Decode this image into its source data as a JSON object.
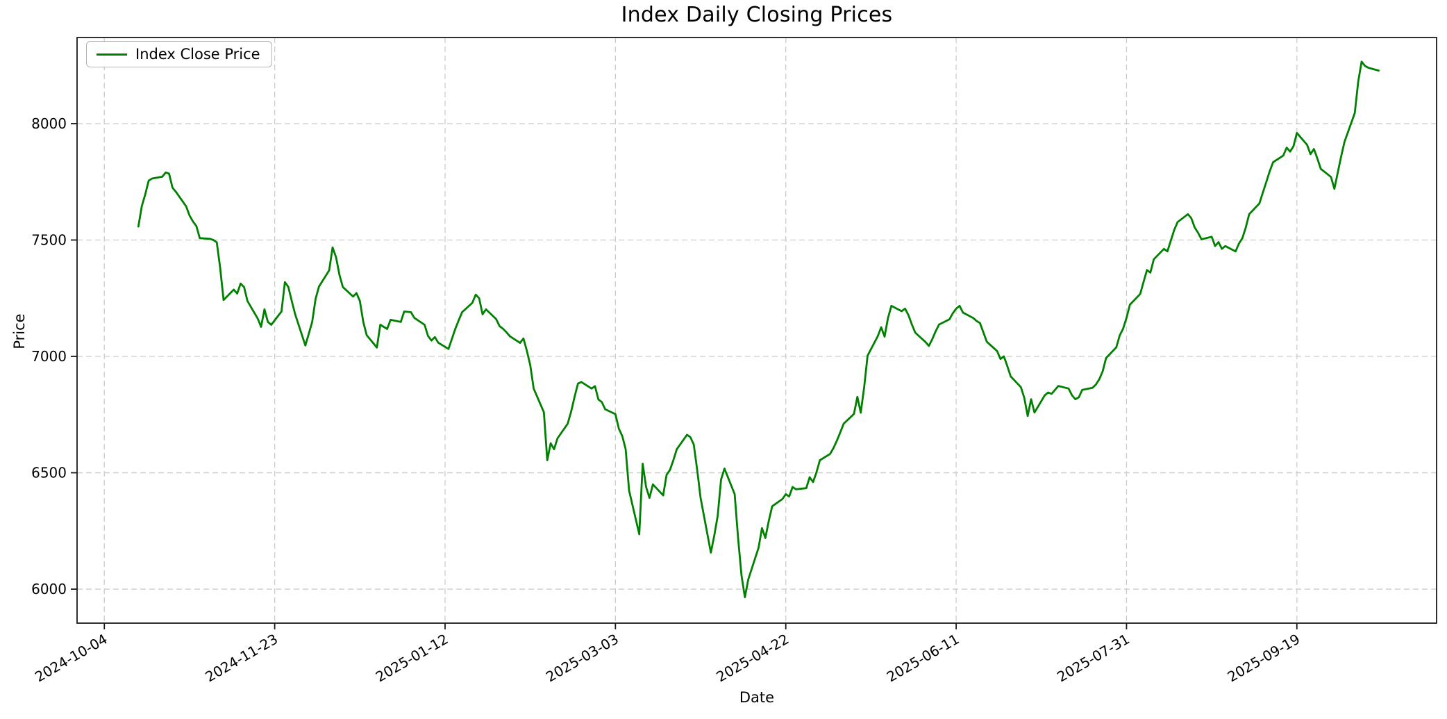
{
  "figure": {
    "title": "Index Daily Closing Prices",
    "xlabel": "Date",
    "ylabel": "Price"
  },
  "legend": {
    "label": "Index Close Price"
  },
  "chart_data": {
    "type": "line",
    "title": "Index Daily Closing Prices",
    "xlabel": "Date",
    "ylabel": "Price",
    "grid": true,
    "grid_style": "dashed",
    "legend_position": "upper-left",
    "legend_entries": [
      "Index Close Price"
    ],
    "line_color": "#008000",
    "grid_color": "#cccccc",
    "spine_color": "#1a1a1a",
    "x_range": [
      "2024-09-26",
      "2025-10-30"
    ],
    "ylim": [
      5854,
      8370
    ],
    "x_ticks": [
      "2024-10-04",
      "2024-11-23",
      "2025-01-12",
      "2025-03-03",
      "2025-04-22",
      "2025-06-11",
      "2025-07-31",
      "2025-09-19"
    ],
    "y_ticks": [
      6000,
      6500,
      7000,
      7500,
      8000
    ],
    "series": [
      {
        "name": "Index Close Price",
        "color": "#008000",
        "points": [
          [
            "2024-10-14",
            7558
          ],
          [
            "2024-10-15",
            7645
          ],
          [
            "2024-10-16",
            7695
          ],
          [
            "2024-10-17",
            7755
          ],
          [
            "2024-10-18",
            7764
          ],
          [
            "2024-10-21",
            7772
          ],
          [
            "2024-10-22",
            7790
          ],
          [
            "2024-10-23",
            7785
          ],
          [
            "2024-10-24",
            7725
          ],
          [
            "2024-10-25",
            7707
          ],
          [
            "2024-10-28",
            7645
          ],
          [
            "2024-10-29",
            7606
          ],
          [
            "2024-10-30",
            7580
          ],
          [
            "2024-10-31",
            7560
          ],
          [
            "2024-11-01",
            7508
          ],
          [
            "2024-11-04",
            7505
          ],
          [
            "2024-11-05",
            7500
          ],
          [
            "2024-11-06",
            7490
          ],
          [
            "2024-11-07",
            7380
          ],
          [
            "2024-11-08",
            7242
          ],
          [
            "2024-11-11",
            7287
          ],
          [
            "2024-11-12",
            7270
          ],
          [
            "2024-11-13",
            7313
          ],
          [
            "2024-11-14",
            7298
          ],
          [
            "2024-11-15",
            7238
          ],
          [
            "2024-11-18",
            7163
          ],
          [
            "2024-11-19",
            7127
          ],
          [
            "2024-11-20",
            7202
          ],
          [
            "2024-11-21",
            7148
          ],
          [
            "2024-11-22",
            7136
          ],
          [
            "2024-11-25",
            7193
          ],
          [
            "2024-11-26",
            7319
          ],
          [
            "2024-11-27",
            7298
          ],
          [
            "2024-11-28",
            7238
          ],
          [
            "2024-11-29",
            7181
          ],
          [
            "2024-12-02",
            7047
          ],
          [
            "2024-12-03",
            7097
          ],
          [
            "2024-12-04",
            7148
          ],
          [
            "2024-12-05",
            7247
          ],
          [
            "2024-12-06",
            7300
          ],
          [
            "2024-12-09",
            7370
          ],
          [
            "2024-12-10",
            7468
          ],
          [
            "2024-12-11",
            7426
          ],
          [
            "2024-12-12",
            7350
          ],
          [
            "2024-12-13",
            7298
          ],
          [
            "2024-12-16",
            7257
          ],
          [
            "2024-12-17",
            7272
          ],
          [
            "2024-12-18",
            7238
          ],
          [
            "2024-12-19",
            7148
          ],
          [
            "2024-12-20",
            7091
          ],
          [
            "2024-12-23",
            7038
          ],
          [
            "2024-12-24",
            7136
          ],
          [
            "2024-12-26",
            7118
          ],
          [
            "2024-12-27",
            7157
          ],
          [
            "2024-12-30",
            7148
          ],
          [
            "2024-12-31",
            7193
          ],
          [
            "2025-01-02",
            7190
          ],
          [
            "2025-01-03",
            7165
          ],
          [
            "2025-01-06",
            7136
          ],
          [
            "2025-01-07",
            7088
          ],
          [
            "2025-01-08",
            7068
          ],
          [
            "2025-01-09",
            7083
          ],
          [
            "2025-01-10",
            7059
          ],
          [
            "2025-01-13",
            7032
          ],
          [
            "2025-01-14",
            7075
          ],
          [
            "2025-01-15",
            7118
          ],
          [
            "2025-01-16",
            7155
          ],
          [
            "2025-01-17",
            7190
          ],
          [
            "2025-01-20",
            7230
          ],
          [
            "2025-01-21",
            7265
          ],
          [
            "2025-01-22",
            7250
          ],
          [
            "2025-01-23",
            7181
          ],
          [
            "2025-01-24",
            7202
          ],
          [
            "2025-01-27",
            7160
          ],
          [
            "2025-01-28",
            7130
          ],
          [
            "2025-01-29",
            7119
          ],
          [
            "2025-01-30",
            7104
          ],
          [
            "2025-01-31",
            7087
          ],
          [
            "2025-02-03",
            7058
          ],
          [
            "2025-02-04",
            7077
          ],
          [
            "2025-02-05",
            7024
          ],
          [
            "2025-02-06",
            6962
          ],
          [
            "2025-02-07",
            6862
          ],
          [
            "2025-02-10",
            6760
          ],
          [
            "2025-02-11",
            6554
          ],
          [
            "2025-02-12",
            6627
          ],
          [
            "2025-02-13",
            6601
          ],
          [
            "2025-02-14",
            6648
          ],
          [
            "2025-02-17",
            6711
          ],
          [
            "2025-02-18",
            6763
          ],
          [
            "2025-02-19",
            6826
          ],
          [
            "2025-02-20",
            6883
          ],
          [
            "2025-02-21",
            6890
          ],
          [
            "2025-02-24",
            6862
          ],
          [
            "2025-02-25",
            6872
          ],
          [
            "2025-02-26",
            6815
          ],
          [
            "2025-02-27",
            6804
          ],
          [
            "2025-02-28",
            6773
          ],
          [
            "2025-03-03",
            6752
          ],
          [
            "2025-03-04",
            6689
          ],
          [
            "2025-03-05",
            6658
          ],
          [
            "2025-03-06",
            6601
          ],
          [
            "2025-03-07",
            6424
          ],
          [
            "2025-03-10",
            6236
          ],
          [
            "2025-03-11",
            6539
          ],
          [
            "2025-03-12",
            6439
          ],
          [
            "2025-03-13",
            6392
          ],
          [
            "2025-03-14",
            6450
          ],
          [
            "2025-03-17",
            6403
          ],
          [
            "2025-03-18",
            6491
          ],
          [
            "2025-03-19",
            6512
          ],
          [
            "2025-03-20",
            6554
          ],
          [
            "2025-03-21",
            6601
          ],
          [
            "2025-03-24",
            6663
          ],
          [
            "2025-03-25",
            6653
          ],
          [
            "2025-03-26",
            6621
          ],
          [
            "2025-03-27",
            6512
          ],
          [
            "2025-03-28",
            6392
          ],
          [
            "2025-03-31",
            6157
          ],
          [
            "2025-04-01",
            6230
          ],
          [
            "2025-04-02",
            6314
          ],
          [
            "2025-04-03",
            6471
          ],
          [
            "2025-04-04",
            6518
          ],
          [
            "2025-04-07",
            6408
          ],
          [
            "2025-04-08",
            6220
          ],
          [
            "2025-04-09",
            6060
          ],
          [
            "2025-04-10",
            5965
          ],
          [
            "2025-04-11",
            6042
          ],
          [
            "2025-04-14",
            6178
          ],
          [
            "2025-04-15",
            6262
          ],
          [
            "2025-04-16",
            6220
          ],
          [
            "2025-04-17",
            6293
          ],
          [
            "2025-04-18",
            6356
          ],
          [
            "2025-04-21",
            6387
          ],
          [
            "2025-04-22",
            6408
          ],
          [
            "2025-04-23",
            6398
          ],
          [
            "2025-04-24",
            6439
          ],
          [
            "2025-04-25",
            6429
          ],
          [
            "2025-04-28",
            6434
          ],
          [
            "2025-04-29",
            6481
          ],
          [
            "2025-04-30",
            6460
          ],
          [
            "2025-05-01",
            6502
          ],
          [
            "2025-05-02",
            6554
          ],
          [
            "2025-05-05",
            6581
          ],
          [
            "2025-05-06",
            6606
          ],
          [
            "2025-05-07",
            6638
          ],
          [
            "2025-05-08",
            6674
          ],
          [
            "2025-05-09",
            6711
          ],
          [
            "2025-05-12",
            6753
          ],
          [
            "2025-05-13",
            6826
          ],
          [
            "2025-05-14",
            6758
          ],
          [
            "2025-05-15",
            6868
          ],
          [
            "2025-05-16",
            7003
          ],
          [
            "2025-05-19",
            7087
          ],
          [
            "2025-05-20",
            7125
          ],
          [
            "2025-05-21",
            7085
          ],
          [
            "2025-05-22",
            7165
          ],
          [
            "2025-05-23",
            7217
          ],
          [
            "2025-05-26",
            7194
          ],
          [
            "2025-05-27",
            7205
          ],
          [
            "2025-05-28",
            7177
          ],
          [
            "2025-05-29",
            7137
          ],
          [
            "2025-05-30",
            7102
          ],
          [
            "2025-06-02",
            7062
          ],
          [
            "2025-06-03",
            7045
          ],
          [
            "2025-06-04",
            7074
          ],
          [
            "2025-06-05",
            7108
          ],
          [
            "2025-06-06",
            7137
          ],
          [
            "2025-06-09",
            7159
          ],
          [
            "2025-06-10",
            7185
          ],
          [
            "2025-06-11",
            7205
          ],
          [
            "2025-06-12",
            7217
          ],
          [
            "2025-06-13",
            7188
          ],
          [
            "2025-06-16",
            7165
          ],
          [
            "2025-06-17",
            7152
          ],
          [
            "2025-06-18",
            7143
          ],
          [
            "2025-06-19",
            7103
          ],
          [
            "2025-06-20",
            7063
          ],
          [
            "2025-06-23",
            7023
          ],
          [
            "2025-06-24",
            6989
          ],
          [
            "2025-06-25",
            7000
          ],
          [
            "2025-06-26",
            6959
          ],
          [
            "2025-06-27",
            6914
          ],
          [
            "2025-06-30",
            6868
          ],
          [
            "2025-07-01",
            6822
          ],
          [
            "2025-07-02",
            6744
          ],
          [
            "2025-07-03",
            6816
          ],
          [
            "2025-07-04",
            6759
          ],
          [
            "2025-07-07",
            6833
          ],
          [
            "2025-07-08",
            6845
          ],
          [
            "2025-07-09",
            6839
          ],
          [
            "2025-07-10",
            6856
          ],
          [
            "2025-07-11",
            6873
          ],
          [
            "2025-07-14",
            6862
          ],
          [
            "2025-07-15",
            6833
          ],
          [
            "2025-07-16",
            6816
          ],
          [
            "2025-07-17",
            6824
          ],
          [
            "2025-07-18",
            6856
          ],
          [
            "2025-07-21",
            6865
          ],
          [
            "2025-07-22",
            6879
          ],
          [
            "2025-07-23",
            6902
          ],
          [
            "2025-07-24",
            6936
          ],
          [
            "2025-07-25",
            6993
          ],
          [
            "2025-07-28",
            7039
          ],
          [
            "2025-07-29",
            7090
          ],
          [
            "2025-07-30",
            7119
          ],
          [
            "2025-07-31",
            7165
          ],
          [
            "2025-08-01",
            7222
          ],
          [
            "2025-08-04",
            7268
          ],
          [
            "2025-08-05",
            7320
          ],
          [
            "2025-08-06",
            7371
          ],
          [
            "2025-08-07",
            7360
          ],
          [
            "2025-08-08",
            7417
          ],
          [
            "2025-08-11",
            7462
          ],
          [
            "2025-08-12",
            7451
          ],
          [
            "2025-08-13",
            7497
          ],
          [
            "2025-08-14",
            7543
          ],
          [
            "2025-08-15",
            7577
          ],
          [
            "2025-08-18",
            7611
          ],
          [
            "2025-08-19",
            7594
          ],
          [
            "2025-08-20",
            7554
          ],
          [
            "2025-08-21",
            7531
          ],
          [
            "2025-08-22",
            7503
          ],
          [
            "2025-08-25",
            7514
          ],
          [
            "2025-08-26",
            7474
          ],
          [
            "2025-08-27",
            7491
          ],
          [
            "2025-08-28",
            7462
          ],
          [
            "2025-08-29",
            7474
          ],
          [
            "2025-09-01",
            7451
          ],
          [
            "2025-09-02",
            7485
          ],
          [
            "2025-09-03",
            7508
          ],
          [
            "2025-09-04",
            7554
          ],
          [
            "2025-09-05",
            7611
          ],
          [
            "2025-09-08",
            7657
          ],
          [
            "2025-09-09",
            7703
          ],
          [
            "2025-09-10",
            7748
          ],
          [
            "2025-09-11",
            7794
          ],
          [
            "2025-09-12",
            7834
          ],
          [
            "2025-09-15",
            7863
          ],
          [
            "2025-09-16",
            7897
          ],
          [
            "2025-09-17",
            7880
          ],
          [
            "2025-09-18",
            7903
          ],
          [
            "2025-09-19",
            7960
          ],
          [
            "2025-09-22",
            7909
          ],
          [
            "2025-09-23",
            7869
          ],
          [
            "2025-09-24",
            7891
          ],
          [
            "2025-09-25",
            7851
          ],
          [
            "2025-09-26",
            7806
          ],
          [
            "2025-09-29",
            7771
          ],
          [
            "2025-09-30",
            7720
          ],
          [
            "2025-10-01",
            7790
          ],
          [
            "2025-10-02",
            7860
          ],
          [
            "2025-10-03",
            7923
          ],
          [
            "2025-10-06",
            8046
          ],
          [
            "2025-10-07",
            8180
          ],
          [
            "2025-10-08",
            8266
          ],
          [
            "2025-10-09",
            8248
          ],
          [
            "2025-10-10",
            8240
          ],
          [
            "2025-10-13",
            8228
          ]
        ]
      }
    ]
  }
}
